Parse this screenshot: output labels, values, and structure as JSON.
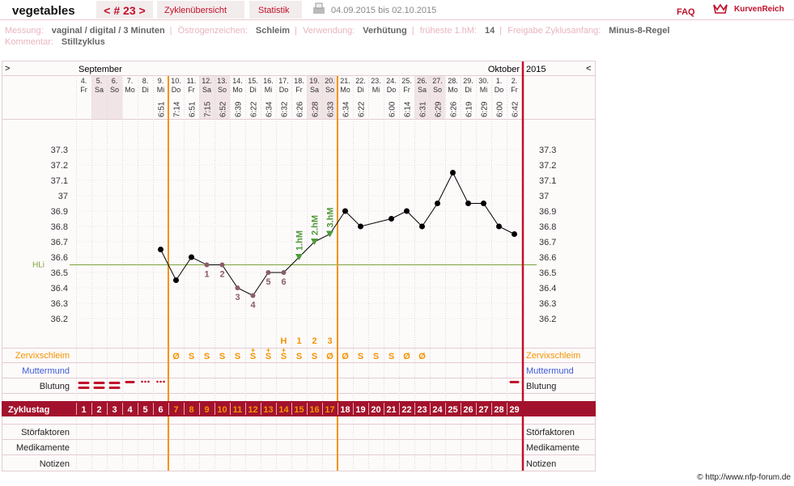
{
  "header": {
    "title": "vegetables",
    "cycle_nav": "< # 23 >",
    "tabs": [
      "Zyklenübersicht",
      "Statistik"
    ],
    "period": "04.09.2015 bis 02.10.2015",
    "faq": "FAQ",
    "brand": "KurvenReich"
  },
  "info": {
    "separator": "|",
    "rows": [
      [
        {
          "label": "Messung:",
          "value": "vaginal / digital / 3 Minuten"
        },
        {
          "label": "Östrogenzeichen:",
          "value": "Schleim"
        },
        {
          "label": "Verwendung:",
          "value": "Verhütung"
        },
        {
          "label": "früheste 1.hM:",
          "value": "14"
        },
        {
          "label": "Freigabe Zyklusanfang:",
          "value": "Minus-8-Regel"
        }
      ],
      [
        {
          "label": "Kommentar:",
          "value": "Stillzyklus"
        }
      ]
    ]
  },
  "chart_data": {
    "type": "line",
    "nav_left": ">",
    "nav_right": "<",
    "month_left": "September",
    "month_right": "Oktober",
    "year": "2015",
    "days": [
      "4.",
      "5.",
      "6.",
      "7.",
      "8.",
      "9.",
      "10.",
      "11.",
      "12.",
      "13.",
      "14.",
      "15.",
      "16.",
      "17.",
      "18.",
      "19.",
      "20.",
      "21.",
      "22.",
      "23.",
      "24.",
      "25.",
      "26.",
      "27.",
      "28.",
      "29.",
      "30.",
      "1.",
      "2."
    ],
    "weekdays": [
      "Fr",
      "Sa",
      "So",
      "Mo",
      "Di",
      "Mi",
      "Do",
      "Fr",
      "Sa",
      "So",
      "Mo",
      "Di",
      "Mi",
      "Do",
      "Fr",
      "Sa",
      "So",
      "Mo",
      "Di",
      "Mi",
      "Do",
      "Fr",
      "Sa",
      "So",
      "Mo",
      "Di",
      "Mi",
      "Do",
      "Fr"
    ],
    "times": [
      null,
      null,
      null,
      null,
      null,
      "6:51",
      "7:14",
      "6:51",
      "7:15",
      "6:52",
      "6:39",
      "6:22",
      "6:34",
      "6:32",
      "6:26",
      "6:28",
      "6:33",
      "6:34",
      "6:22",
      null,
      "6:00",
      "6:14",
      "6:31",
      "6:29",
      "6:26",
      "6:19",
      "6:29",
      "6:00",
      "6:42"
    ],
    "x": [
      6,
      7,
      8,
      9,
      10,
      11,
      12,
      13,
      14,
      15,
      16,
      17,
      18,
      19,
      21,
      22,
      23,
      24,
      25,
      26,
      27,
      28,
      29
    ],
    "values": [
      36.65,
      36.45,
      36.6,
      36.55,
      36.55,
      36.4,
      36.35,
      36.5,
      36.5,
      36.6,
      36.7,
      36.75,
      36.9,
      36.8,
      36.85,
      36.9,
      36.8,
      36.95,
      37.15,
      36.95,
      36.95,
      36.8,
      36.75
    ],
    "color": "#000000",
    "xlim": [
      0.5,
      29.5
    ],
    "ylim": [
      36.0,
      37.5
    ],
    "yticks": [
      36.2,
      36.3,
      36.4,
      36.5,
      36.6,
      36.7,
      36.8,
      36.9,
      37,
      37.1,
      37.2,
      37.3
    ],
    "grid": true,
    "hli": {
      "label": "HLi",
      "value": 36.55
    },
    "low_points": {
      "x": [
        9,
        10,
        11,
        12,
        13,
        14
      ],
      "labels": [
        "1",
        "2",
        "3",
        "4",
        "5",
        "6"
      ]
    },
    "hm_points": {
      "x": [
        15,
        16,
        17
      ],
      "labels": [
        "1.hM",
        "2.hM",
        "3.hM"
      ]
    },
    "symbols": {
      "x": [
        14,
        15,
        16,
        17
      ],
      "labels": [
        "H",
        "1",
        "2",
        "3"
      ]
    },
    "fertile_window": [
      7,
      17
    ],
    "rows": {
      "zervix": "Zervixschleim",
      "muttermund": "Muttermund",
      "blutung": "Blutung",
      "zyklustag": "Zyklustag",
      "stoer": "Störfaktoren",
      "medi": "Medikamente",
      "notizen": "Notizen"
    },
    "mucus": [
      null,
      null,
      null,
      null,
      null,
      null,
      "Ø",
      "S",
      "S",
      "S",
      "S",
      "S",
      "S",
      "S",
      "S",
      "S",
      "Ø",
      "Ø",
      "S",
      "S",
      "S",
      "Ø",
      "Ø",
      null,
      null,
      null,
      null,
      null,
      null
    ],
    "mucus_plus": [
      null,
      null,
      null,
      null,
      null,
      null,
      null,
      null,
      null,
      null,
      null,
      "+",
      "+",
      "+",
      null,
      null,
      null,
      null,
      null,
      null,
      null,
      null,
      null,
      null,
      null,
      null,
      null,
      null,
      null
    ],
    "cycle_days": [
      1,
      2,
      3,
      4,
      5,
      6,
      7,
      8,
      9,
      10,
      11,
      12,
      13,
      14,
      15,
      16,
      17,
      18,
      19,
      20,
      21,
      22,
      23,
      24,
      25,
      26,
      27,
      28,
      29
    ]
  },
  "copyright": "© http://www.nfp-forum.de"
}
